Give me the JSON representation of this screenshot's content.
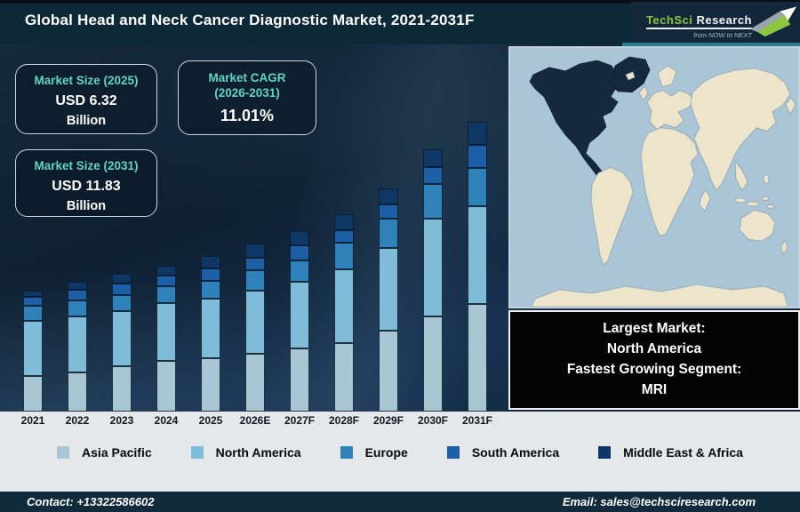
{
  "theme": {
    "titlebar_bg": "#0d2836",
    "band_bg": "#e4e8ea",
    "footer_bg": "#112b3d",
    "callout_bg": "#030303",
    "accent_teal": "#5ed6c3",
    "logo_green": "#8dc63f",
    "map_ocean": "#a9c5d6",
    "map_land": "#ece4cb",
    "map_highlight": "#15293e"
  },
  "header": {
    "title": "Global Head and Neck Cancer Diagnostic Market, 2021-2031F",
    "logo": {
      "brand_primary": "TechSci",
      "brand_secondary": "Research",
      "tagline": "from NOW to NEXT"
    }
  },
  "stats": {
    "size_2025": {
      "label": "Market Size (2025)",
      "value": "USD 6.32",
      "unit": "Billion"
    },
    "cagr": {
      "label_line1": "Market CAGR",
      "label_line2": "(2026-2031)",
      "value": "11.01%"
    },
    "size_2031": {
      "label": "Market Size (2031)",
      "value": "USD 11.83",
      "unit": "Billion"
    }
  },
  "chart_data": {
    "type": "bar",
    "stacked": true,
    "title": "Global Head and Neck Cancer Diagnostic Market, 2021-2031F",
    "unit": "USD Billion",
    "categories": [
      "2021",
      "2022",
      "2023",
      "2024",
      "2025",
      "2026E",
      "2027F",
      "2028F",
      "2029F",
      "2030F",
      "2031F"
    ],
    "series": [
      {
        "name": "Asia Pacific",
        "color": "#a8c6d4",
        "values": [
          1.44,
          1.59,
          1.83,
          2.07,
          2.16,
          2.35,
          2.56,
          2.8,
          3.28,
          3.86,
          4.4
        ]
      },
      {
        "name": "North America",
        "color": "#7fbcd9",
        "values": [
          2.23,
          2.29,
          2.24,
          2.35,
          2.41,
          2.59,
          2.71,
          3.01,
          3.38,
          4.0,
          4.0
        ]
      },
      {
        "name": "Europe",
        "color": "#2f81ba",
        "values": [
          0.6,
          0.64,
          0.66,
          0.7,
          0.72,
          0.84,
          0.88,
          1.09,
          1.2,
          1.42,
          1.55
        ]
      },
      {
        "name": "South America",
        "color": "#1d5fa7",
        "values": [
          0.36,
          0.42,
          0.48,
          0.45,
          0.51,
          0.5,
          0.6,
          0.5,
          0.58,
          0.7,
          0.94
        ]
      },
      {
        "name": "Middle East & Africa",
        "color": "#0e3766",
        "values": [
          0.25,
          0.33,
          0.4,
          0.4,
          0.52,
          0.58,
          0.57,
          0.66,
          0.66,
          0.71,
          0.94
        ]
      }
    ],
    "totals_labeled": {
      "2025": 6.32,
      "2031": 11.83
    },
    "cagr_2026_2031_pct": 11.01,
    "ylim": [
      0,
      12.5
    ],
    "grid": false,
    "legend_position": "bottom"
  },
  "map": {
    "highlighted_region": "North America"
  },
  "callout": {
    "line1": "Largest Market:",
    "line2": "North America",
    "line3": "Fastest Growing Segment:",
    "line4": "MRI"
  },
  "footer": {
    "contact": "Contact: +13322586602",
    "email": "Email: sales@techsciresearch.com"
  }
}
